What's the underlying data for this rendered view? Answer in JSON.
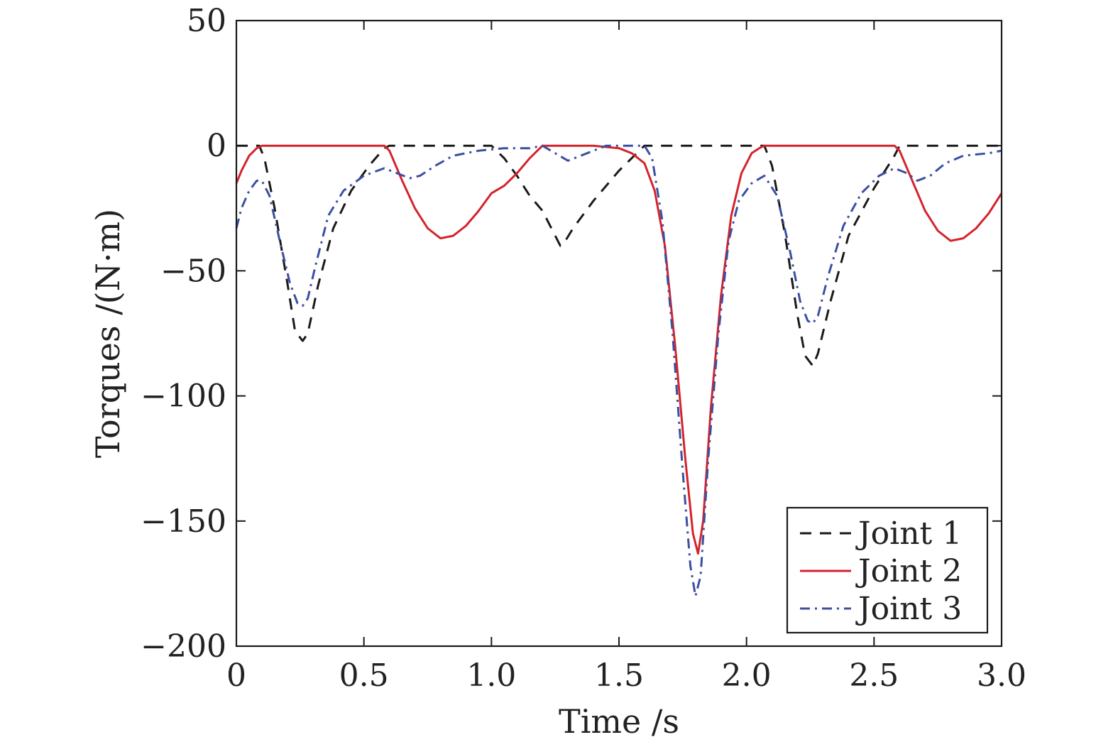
{
  "chart_data": {
    "type": "line",
    "xlabel": "Time /s",
    "ylabel": "Torques /(N·m)",
    "xlim": [
      0,
      3.0
    ],
    "ylim": [
      -200,
      50
    ],
    "xticks": [
      0,
      0.5,
      1.0,
      1.5,
      2.0,
      2.5,
      3.0
    ],
    "xtick_labels": [
      "0",
      "0.5",
      "1.0",
      "1.5",
      "2.0",
      "2.5",
      "3.0"
    ],
    "yticks": [
      50,
      0,
      -50,
      -100,
      -150,
      -200
    ],
    "ytick_labels": [
      "50",
      "0",
      "−50",
      "−100",
      "−150",
      "−200"
    ],
    "grid": false,
    "legend_position": "bottom-right",
    "series": [
      {
        "name": "Joint 1",
        "color": "#1a1a1a",
        "dash": "dashed",
        "x": [
          0,
          0.05,
          0.09,
          0.11,
          0.15,
          0.2,
          0.23,
          0.26,
          0.28,
          0.32,
          0.38,
          0.45,
          0.52,
          0.58,
          0.6,
          0.8,
          1.0,
          1.05,
          1.1,
          1.15,
          1.2,
          1.25,
          1.27,
          1.29,
          1.32,
          1.4,
          1.5,
          1.58,
          1.6,
          2.0,
          2.07,
          2.1,
          2.15,
          2.2,
          2.23,
          2.26,
          2.28,
          2.33,
          2.4,
          2.5,
          2.58,
          2.6,
          2.8,
          2.85,
          3.0
        ],
        "y": [
          0,
          0,
          0,
          -5,
          -25,
          -55,
          -74,
          -78,
          -75,
          -56,
          -33,
          -18,
          -8,
          -1,
          0,
          0,
          0,
          -5,
          -12,
          -20,
          -26,
          -36,
          -40,
          -38,
          -33,
          -22,
          -10,
          -2,
          0,
          0,
          0,
          -8,
          -35,
          -68,
          -84,
          -88,
          -83,
          -62,
          -36,
          -17,
          -4,
          0,
          0,
          0,
          0
        ]
      },
      {
        "name": "Joint 2",
        "color": "#d4232b",
        "dash": "solid",
        "x": [
          0,
          0.02,
          0.05,
          0.08,
          0.1,
          0.58,
          0.6,
          0.65,
          0.7,
          0.75,
          0.8,
          0.85,
          0.9,
          0.95,
          1.0,
          1.05,
          1.1,
          1.15,
          1.2,
          1.3,
          1.4,
          1.5,
          1.55,
          1.6,
          1.64,
          1.68,
          1.72,
          1.76,
          1.79,
          1.81,
          1.83,
          1.86,
          1.9,
          1.94,
          1.98,
          2.02,
          2.05,
          2.07,
          2.1,
          2.58,
          2.6,
          2.65,
          2.7,
          2.75,
          2.8,
          2.85,
          2.9,
          2.95,
          3.0
        ],
        "y": [
          -15,
          -10,
          -4,
          -1,
          0,
          0,
          -2,
          -14,
          -25,
          -33,
          -37,
          -36,
          -32,
          -26,
          -19,
          -16,
          -11,
          -5,
          0,
          0,
          0,
          -1,
          -3,
          -7,
          -18,
          -40,
          -80,
          -125,
          -155,
          -163,
          -150,
          -105,
          -60,
          -28,
          -11,
          -3,
          -1,
          0,
          0,
          0,
          -2,
          -14,
          -26,
          -34,
          -38,
          -37,
          -33,
          -27,
          -19
        ]
      },
      {
        "name": "Joint 3",
        "color": "#3b4fa3",
        "dash": "dashdot",
        "x": [
          0,
          0.02,
          0.05,
          0.08,
          0.1,
          0.13,
          0.17,
          0.21,
          0.24,
          0.26,
          0.28,
          0.31,
          0.36,
          0.42,
          0.5,
          0.58,
          0.63,
          0.68,
          0.72,
          0.78,
          0.85,
          0.95,
          1.05,
          1.15,
          1.2,
          1.25,
          1.3,
          1.35,
          1.4,
          1.45,
          1.55,
          1.6,
          1.63,
          1.67,
          1.71,
          1.75,
          1.78,
          1.8,
          1.82,
          1.85,
          1.89,
          1.93,
          1.97,
          2.02,
          2.07,
          2.12,
          2.17,
          2.21,
          2.24,
          2.26,
          2.28,
          2.32,
          2.38,
          2.45,
          2.52,
          2.58,
          2.63,
          2.67,
          2.72,
          2.78,
          2.85,
          2.95,
          3.0
        ],
        "y": [
          -33,
          -25,
          -18,
          -14,
          -14,
          -20,
          -38,
          -55,
          -63,
          -64,
          -61,
          -48,
          -28,
          -18,
          -12,
          -9,
          -11,
          -13,
          -12,
          -8,
          -4,
          -2,
          -1,
          -1,
          0,
          -3,
          -6,
          -4,
          -2,
          0,
          0,
          0,
          -5,
          -30,
          -75,
          -130,
          -168,
          -180,
          -172,
          -125,
          -75,
          -38,
          -22,
          -15,
          -12,
          -20,
          -42,
          -62,
          -70,
          -71,
          -68,
          -52,
          -32,
          -19,
          -12,
          -9,
          -11,
          -14,
          -12,
          -7,
          -4,
          -3,
          -2
        ]
      }
    ]
  }
}
